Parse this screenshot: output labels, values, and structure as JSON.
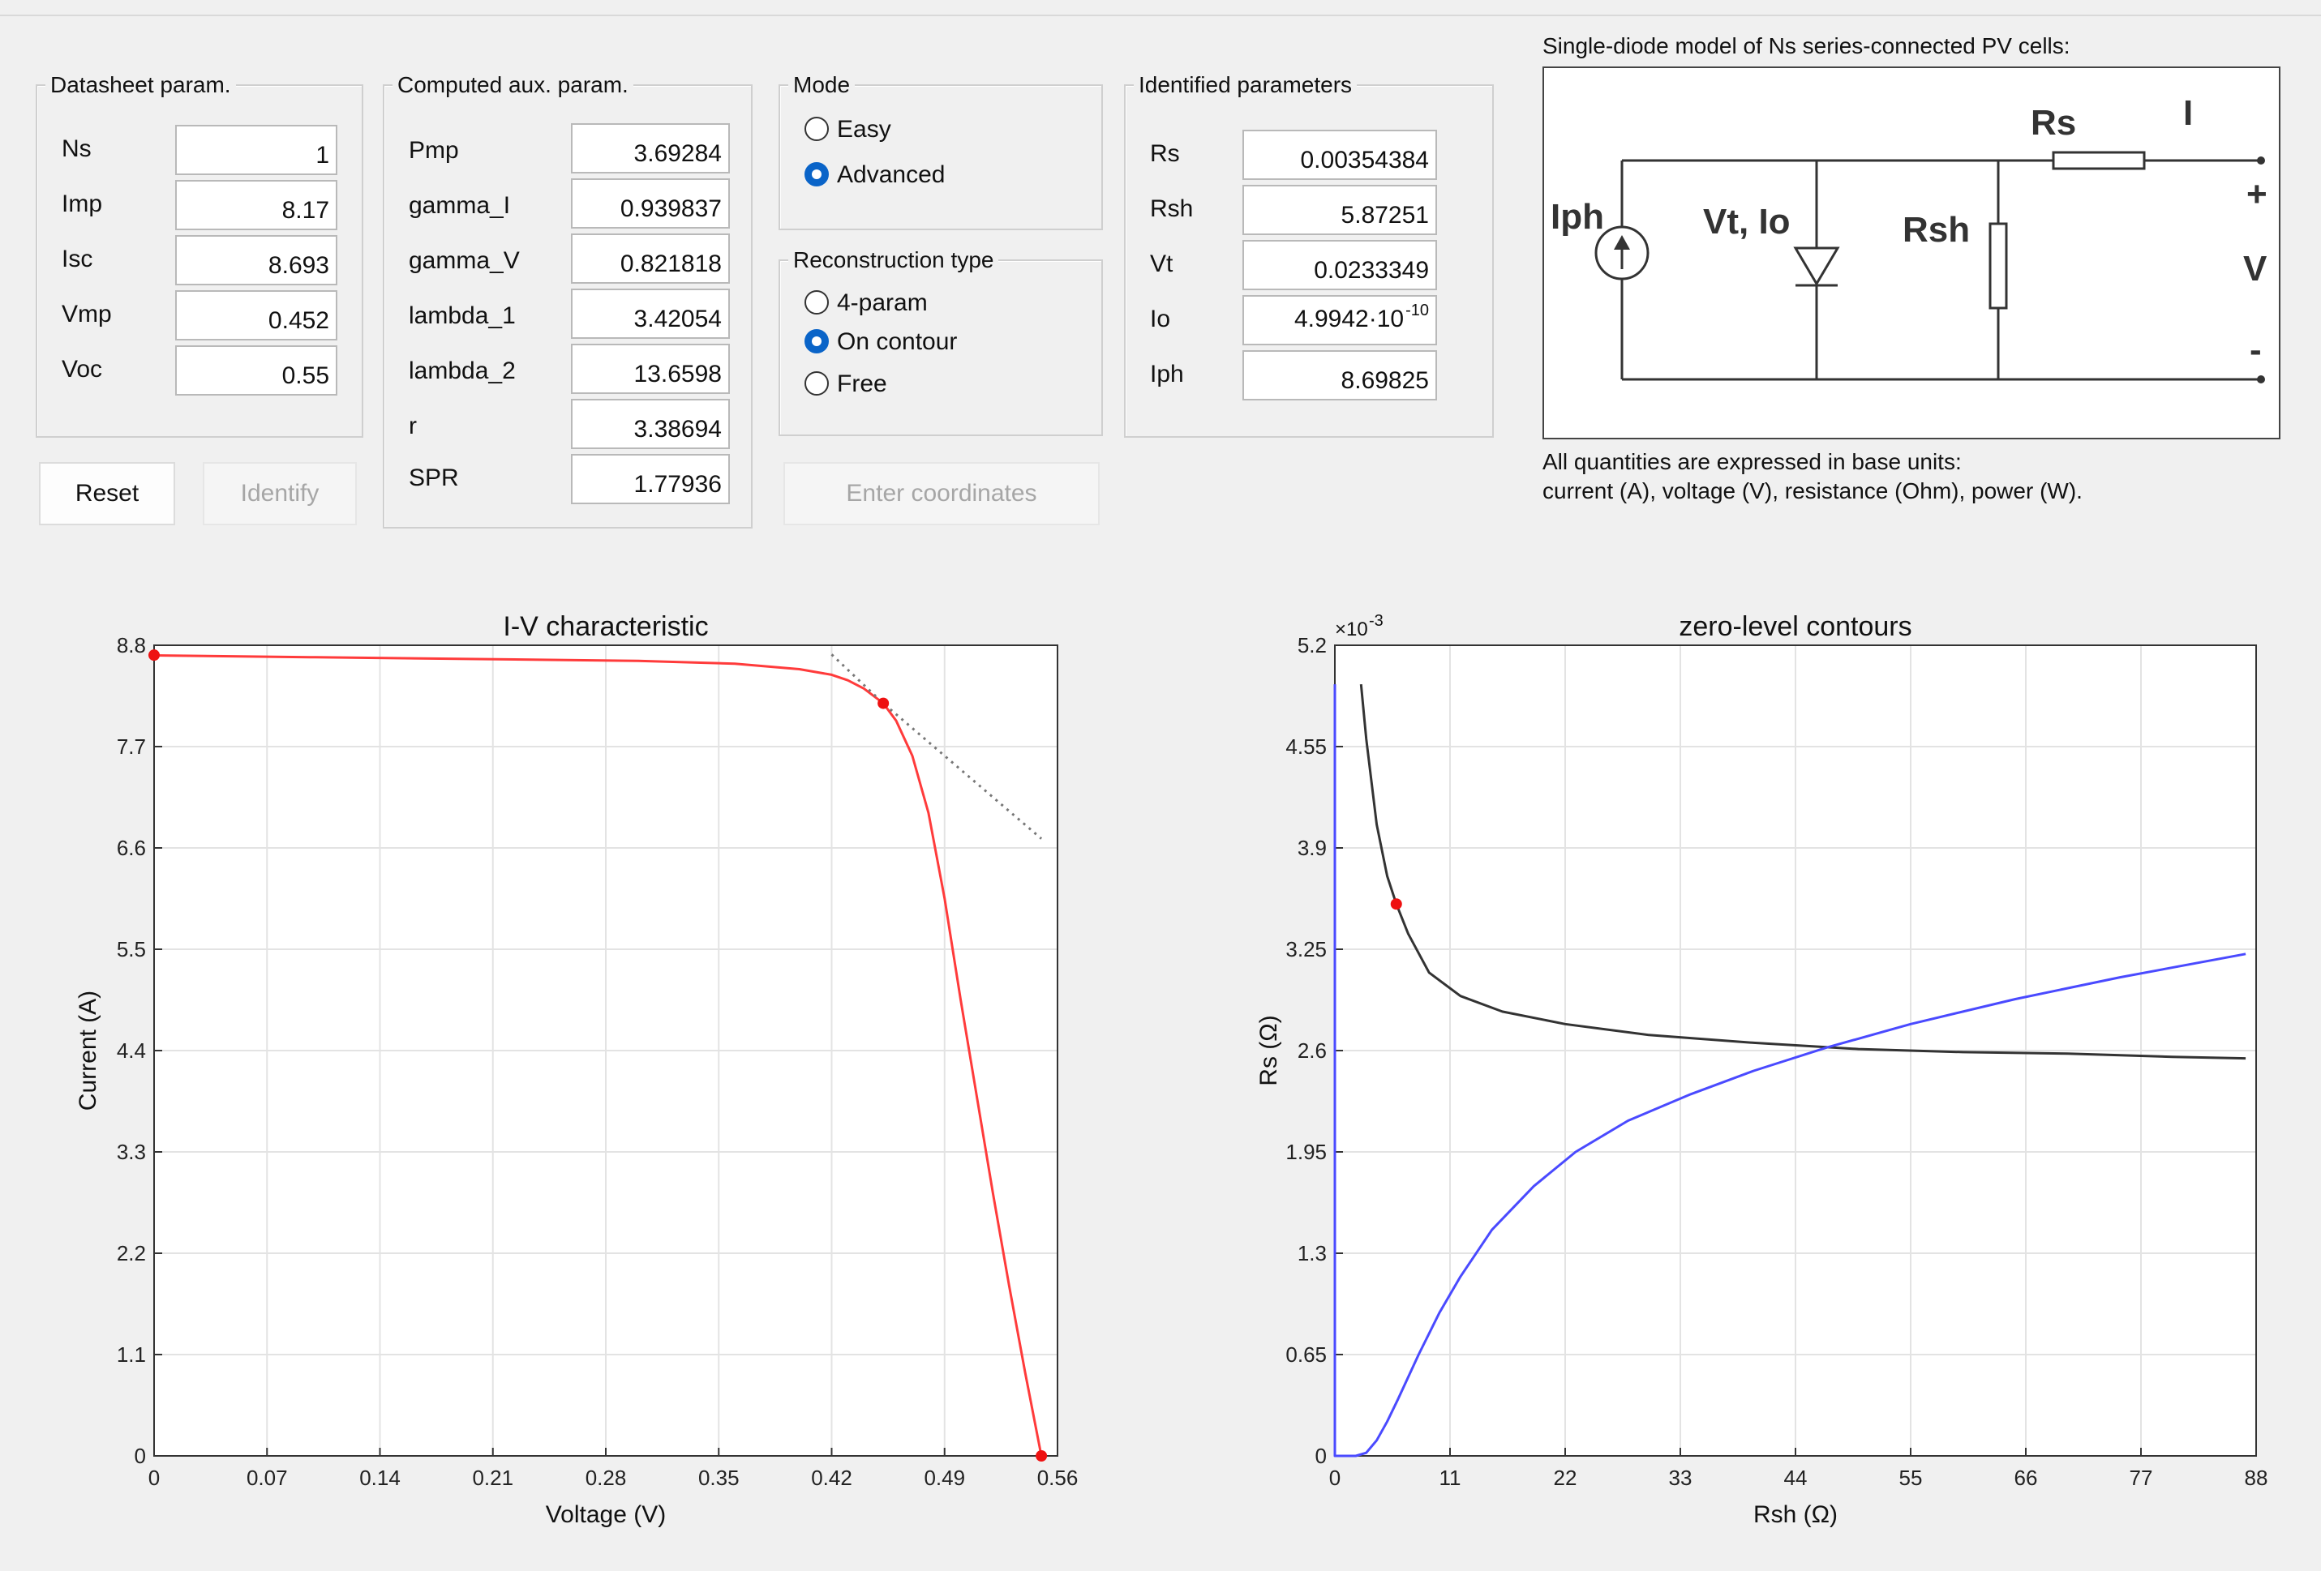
{
  "datasheet": {
    "title": "Datasheet param.",
    "fields": [
      {
        "label": "Ns",
        "value": "1"
      },
      {
        "label": "Imp",
        "value": "8.17"
      },
      {
        "label": "Isc",
        "value": "8.693"
      },
      {
        "label": "Vmp",
        "value": "0.452"
      },
      {
        "label": "Voc",
        "value": "0.55"
      }
    ]
  },
  "computed": {
    "title": "Computed aux. param.",
    "fields": [
      {
        "label": "Pmp",
        "value": "3.69284"
      },
      {
        "label": "gamma_I",
        "value": "0.939837"
      },
      {
        "label": "gamma_V",
        "value": "0.821818"
      },
      {
        "label": "lambda_1",
        "value": "3.42054"
      },
      {
        "label": "lambda_2",
        "value": "13.6598"
      },
      {
        "label": "r",
        "value": "3.38694"
      },
      {
        "label": "SPR",
        "value": "1.77936"
      }
    ]
  },
  "mode": {
    "title": "Mode",
    "options": [
      {
        "label": "Easy",
        "selected": false
      },
      {
        "label": "Advanced",
        "selected": true
      }
    ]
  },
  "reconstruction": {
    "title": "Reconstruction type",
    "options": [
      {
        "label": "4-param",
        "selected": false
      },
      {
        "label": "On contour",
        "selected": true
      },
      {
        "label": "Free",
        "selected": false
      }
    ]
  },
  "identified": {
    "title": "Identified parameters",
    "fields": [
      {
        "label": "Rs",
        "value": "0.00354384"
      },
      {
        "label": "Rsh",
        "value": "5.87251"
      },
      {
        "label": "Vt",
        "value": "0.0233349"
      },
      {
        "label": "Io",
        "value": "4.9942·10",
        "sup": "-10"
      },
      {
        "label": "Iph",
        "value": "8.69825"
      }
    ]
  },
  "buttons": {
    "reset": "Reset",
    "identify": "Identify",
    "enter_coordinates": "Enter coordinates"
  },
  "circuit": {
    "title": "Single-diode model of Ns series-connected PV cells:",
    "labels": {
      "iph": "Iph",
      "vtio": "Vt, Io",
      "rsh": "Rsh",
      "rs": "Rs",
      "i": "I",
      "plus": "+",
      "v": "V",
      "minus": "-"
    },
    "note_line1": "All quantities are expressed in base units:",
    "note_line2": "current (A), voltage (V), resistance (Ohm), power (W)."
  },
  "colors": {
    "red_curve": "#ff3b3b",
    "red_point": "#ee1111",
    "blue_curve": "#4a4aff",
    "black_curve": "#333333",
    "tangent": "#777777"
  },
  "chart_data": [
    {
      "type": "line",
      "title": "I-V characteristic",
      "xlabel": "Voltage (V)",
      "ylabel": "Current (A)",
      "xlim": [
        0,
        0.56
      ],
      "ylim": [
        0,
        8.8
      ],
      "xticks": [
        "0",
        "0.07",
        "0.14",
        "0.21",
        "0.28",
        "0.35",
        "0.42",
        "0.49",
        "0.56"
      ],
      "yticks": [
        "0",
        "1.1",
        "2.2",
        "3.3",
        "4.4",
        "5.5",
        "6.6",
        "7.7",
        "8.8"
      ],
      "grid": true,
      "series": [
        {
          "style": "red-solid",
          "x": [
            0,
            0.1,
            0.2,
            0.3,
            0.36,
            0.4,
            0.42,
            0.43,
            0.44,
            0.452,
            0.46,
            0.47,
            0.48,
            0.49,
            0.5,
            0.51,
            0.52,
            0.53,
            0.54,
            0.55
          ],
          "y": [
            8.69,
            8.67,
            8.65,
            8.63,
            8.6,
            8.54,
            8.48,
            8.42,
            8.33,
            8.17,
            7.98,
            7.6,
            6.98,
            6.05,
            4.95,
            3.9,
            2.85,
            1.85,
            0.9,
            0.0
          ]
        },
        {
          "style": "gray-dotted",
          "x": [
            0.42,
            0.452,
            0.5,
            0.55
          ],
          "y": [
            8.7,
            8.17,
            7.45,
            6.7
          ]
        }
      ],
      "markers": [
        {
          "x": 0,
          "y": 8.693
        },
        {
          "x": 0.452,
          "y": 8.17
        },
        {
          "x": 0.55,
          "y": 0
        }
      ]
    },
    {
      "type": "line",
      "title": "zero-level contours",
      "xlabel": "Rsh (Ω)",
      "ylabel": "Rs (Ω)",
      "y_multiplier": "×10",
      "y_multiplier_exp": "-3",
      "xlim": [
        0,
        88
      ],
      "ylim": [
        0,
        5.2
      ],
      "xticks": [
        "0",
        "11",
        "22",
        "33",
        "44",
        "55",
        "66",
        "77",
        "88"
      ],
      "yticks": [
        "0",
        "0.65",
        "1.3",
        "1.95",
        "2.6",
        "3.25",
        "3.9",
        "4.55",
        "5.2"
      ],
      "grid": true,
      "series": [
        {
          "style": "black",
          "x": [
            2.5,
            3,
            4,
            5,
            5.87,
            7,
            9,
            12,
            16,
            22,
            30,
            40,
            50,
            60,
            70,
            80,
            87
          ],
          "y": [
            4.95,
            4.6,
            4.05,
            3.72,
            3.54,
            3.35,
            3.1,
            2.95,
            2.85,
            2.77,
            2.7,
            2.65,
            2.61,
            2.59,
            2.58,
            2.56,
            2.55
          ]
        },
        {
          "style": "blue",
          "x": [
            0,
            0,
            2,
            3,
            4,
            5,
            6,
            8,
            10,
            12,
            15,
            19,
            23,
            28,
            34,
            40,
            47,
            55,
            65,
            75,
            87
          ],
          "y": [
            4.95,
            0,
            0,
            0.02,
            0.1,
            0.22,
            0.36,
            0.65,
            0.92,
            1.15,
            1.45,
            1.73,
            1.95,
            2.15,
            2.32,
            2.47,
            2.62,
            2.77,
            2.93,
            3.07,
            3.22
          ]
        }
      ],
      "markers": [
        {
          "x": 5.87,
          "y": 3.54
        }
      ]
    }
  ]
}
